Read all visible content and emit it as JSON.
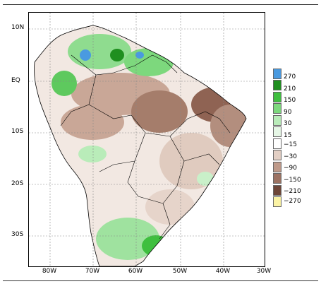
{
  "map": {
    "lat_labels": [
      "10N",
      "EQ",
      "10S",
      "20S",
      "30S"
    ],
    "lon_labels": [
      "80W",
      "70W",
      "60W",
      "50W",
      "40W",
      "30W"
    ]
  },
  "legend": {
    "labels": [
      "270",
      "210",
      "150",
      "90",
      "30",
      "15",
      "−15",
      "−30",
      "−90",
      "−150",
      "−210",
      "−270"
    ],
    "colors": [
      "#4a9ae0",
      "#1f8f1f",
      "#3fbf3f",
      "#7dd87d",
      "#b9ecb9",
      "#e6f7e6",
      "#ffffff",
      "#e3cfc4",
      "#bf9a8a",
      "#9c7262",
      "#6e4638",
      "#fbf3a4"
    ]
  }
}
